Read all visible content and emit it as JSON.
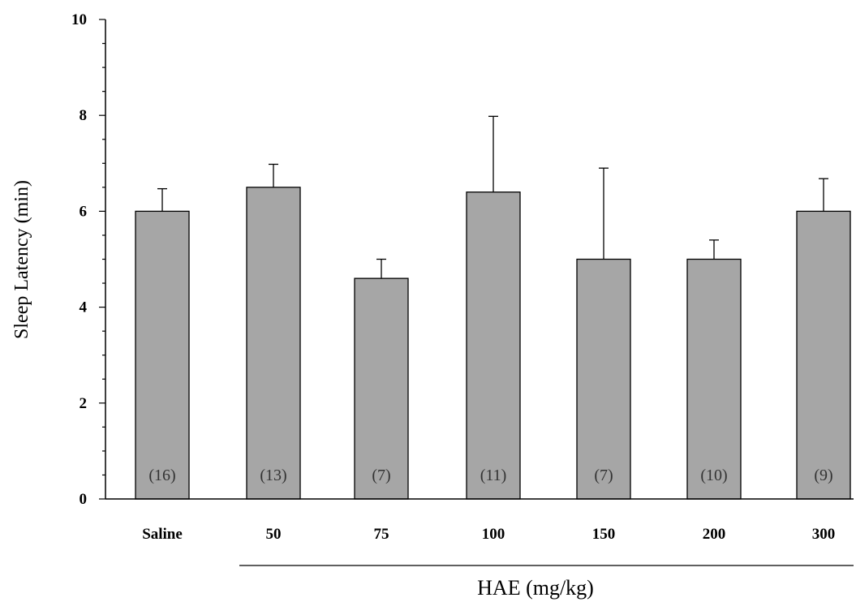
{
  "chart_data": {
    "type": "bar",
    "title": "",
    "xlabel": "HAE (mg/kg)",
    "ylabel": "Sleep Latency  (min)",
    "ylim": [
      0,
      10
    ],
    "yticks": [
      0,
      2,
      4,
      6,
      8,
      10
    ],
    "categories": [
      "Saline",
      "50",
      "75",
      "100",
      "150",
      "200",
      "300"
    ],
    "values": [
      6.0,
      6.5,
      4.6,
      6.4,
      5.0,
      5.0,
      6.0
    ],
    "error_upper": [
      0.47,
      0.48,
      0.4,
      1.58,
      1.9,
      0.4,
      0.68
    ],
    "n_labels": [
      "(16)",
      "(13)",
      "(7)",
      "(11)",
      "(7)",
      "(10)",
      "(9)"
    ],
    "bar_color": "#a6a6a6",
    "grid": false,
    "legend": "none"
  }
}
